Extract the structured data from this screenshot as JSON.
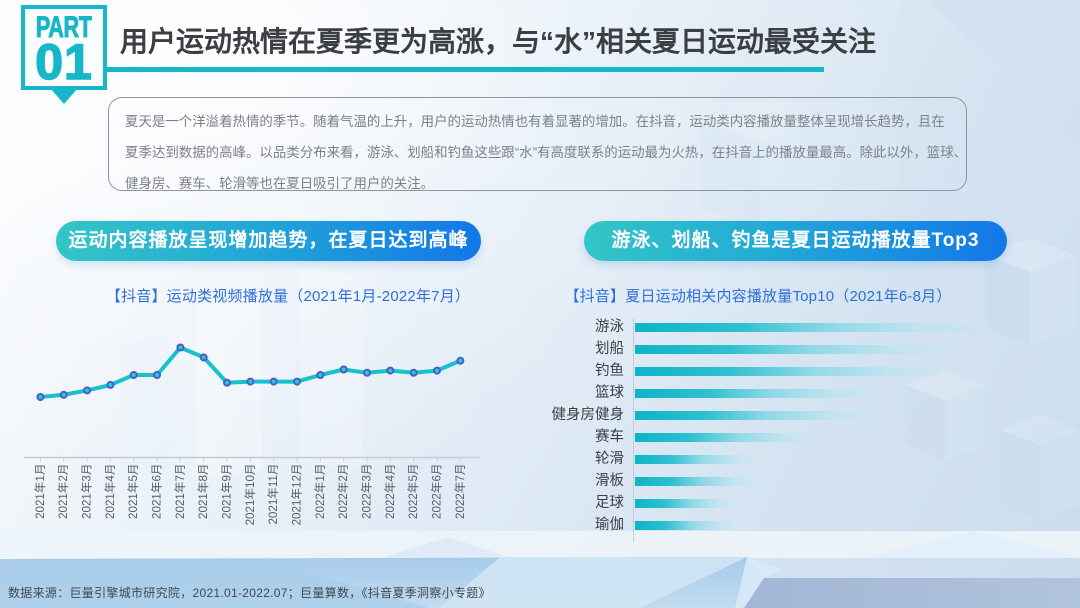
{
  "slide": {
    "part_label": "PART",
    "part_number": "01",
    "title": "用户运动热情在夏季更为高涨，与“水”相关夏日运动最受关注",
    "intro_lines": [
      "夏天是一个洋溢着热情的季节。随着气温的上升，用户的运动热情也有着显著的增加。在抖音，运动类内容播放量整体呈现增长趋势，且在",
      "夏季达到数据的高峰。以品类分布来看，游泳、划船和钓鱼这些跟“水”有高度联系的运动最为火热，在抖音上的播放量最高。除此以外，篮球、",
      "健身房、赛车、轮滑等也在夏日吸引了用户的关注。"
    ],
    "source_note": "数据来源：巨量引擎城市研究院，2021.01-2022.07；巨量算数，《抖音夏季洞察小专题》"
  },
  "left_panel": {
    "headline": "运动内容播放呈现增加趋势，在夏日达到高峰",
    "chart_title": "【抖音】运动类视频播放量（2021年1月-2022年7月）"
  },
  "right_panel": {
    "headline": "游泳、划船、钓鱼是夏日运动播放量Top3",
    "chart_title": "【抖音】夏日运动相关内容播放量Top10（2021年6-8月）"
  },
  "colors": {
    "accent_teal": "#14b8ca",
    "line_stroke": "#17c2ce",
    "marker_ring": "#4a5ec5",
    "marker_fill": "#2cc7d3",
    "pill_gradient_start": "#33c6c6",
    "pill_gradient_end": "#1377e9",
    "chart_title_blue": "#2e6fd9",
    "bar_teal": "#0cb2c5",
    "axis_gray": "#c6ccd4",
    "title_dark": "#3b3e42"
  },
  "chart_data": [
    {
      "type": "line",
      "title": "【抖音】运动类视频播放量（2021年1月-2022年7月）",
      "categories": [
        "2021年1月",
        "2021年2月",
        "2021年3月",
        "2021年4月",
        "2021年5月",
        "2021年6月",
        "2021年7月",
        "2021年8月",
        "2021年9月",
        "2021年10月",
        "2021年11月",
        "2021年12月",
        "2022年1月",
        "2022年2月",
        "2022年3月",
        "2022年4月",
        "2022年5月",
        "2022年6月",
        "2022年7月"
      ],
      "values": [
        55,
        57,
        61,
        66,
        75,
        75,
        100,
        91,
        68,
        69,
        69,
        69,
        75,
        80,
        77,
        79,
        77,
        79,
        88
      ],
      "unit": "relative playback index (2021年7月 peak = 100)",
      "ylim": [
        0,
        110
      ],
      "grid": false,
      "legend": false,
      "y_axis": false
    },
    {
      "type": "bar",
      "orientation": "horizontal",
      "title": "【抖音】夏日运动相关内容播放量Top10（2021年6-8月）",
      "categories": [
        "游泳",
        "划船",
        "钓鱼",
        "篮球",
        "健身房健身",
        "赛车",
        "轮滑",
        "滑板",
        "足球",
        "瑜伽"
      ],
      "values": [
        100,
        90,
        89,
        70,
        68,
        52,
        34,
        35,
        29,
        29
      ],
      "unit": "relative playback index (游泳 top = 100)",
      "xlim": [
        0,
        105
      ],
      "grid": false,
      "legend": false,
      "value_labels": false
    }
  ]
}
